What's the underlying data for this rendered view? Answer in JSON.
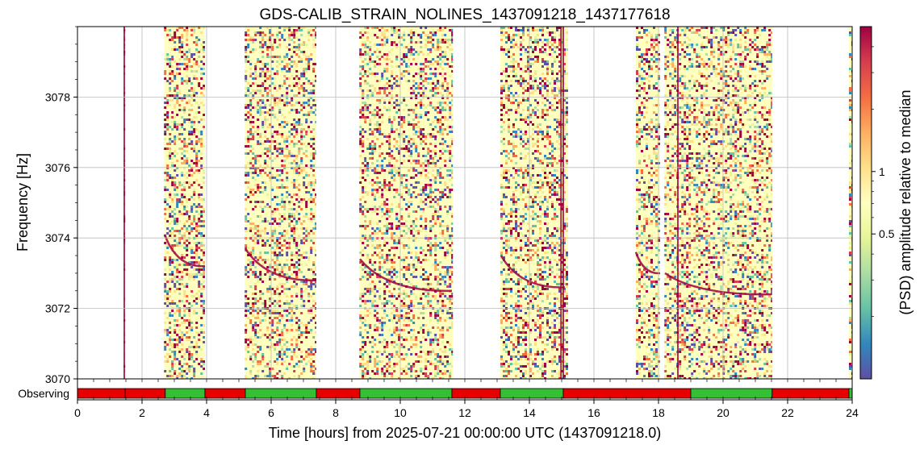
{
  "chart_data": {
    "type": "heatmap",
    "title": "GDS-CALIB_STRAIN_NOLINES_1437091218_1437177618",
    "xlabel": "Time [hours] from 2025-07-21 00:00:00 UTC (1437091218.0)",
    "ylabel": "Frequency [Hz]",
    "colorbar_label": "(PSD) amplitude relative to median",
    "xlim": [
      0,
      24
    ],
    "ylim": [
      3070,
      3080
    ],
    "x_ticks": [
      0,
      2,
      4,
      6,
      8,
      10,
      12,
      14,
      16,
      18,
      20,
      22,
      24
    ],
    "x_tick_labels": [
      "0",
      "2",
      "4",
      "6",
      "8",
      "10",
      "12",
      "14",
      "16",
      "18",
      "20",
      "22",
      "24"
    ],
    "y_ticks": [
      3070,
      3072,
      3074,
      3076,
      3078
    ],
    "y_tick_labels": [
      "3070",
      "3072",
      "3074",
      "3076",
      "3078"
    ],
    "colorbar_scale": "log",
    "colorbar_range": [
      0.1,
      5
    ],
    "colorbar_ticks": [
      0.5,
      1
    ],
    "colorbar_tick_labels": [
      "0.5",
      "1"
    ],
    "colormap": "Spectral_r",
    "grid": true,
    "data_segments_hours": [
      [
        1.43,
        1.48
      ],
      [
        2.68,
        3.95
      ],
      [
        5.18,
        7.4
      ],
      [
        8.73,
        11.63
      ],
      [
        13.1,
        15.2
      ],
      [
        17.3,
        18.05
      ],
      [
        18.18,
        21.52
      ],
      [
        23.9,
        24.0
      ]
    ],
    "line_features": [
      {
        "start": [
          2.7,
          3074.1
        ],
        "end": [
          3.95,
          3073.2
        ]
      },
      {
        "start": [
          5.2,
          3073.7
        ],
        "end": [
          7.4,
          3072.8
        ]
      },
      {
        "start": [
          8.75,
          3073.4
        ],
        "end": [
          11.6,
          3072.5
        ]
      },
      {
        "start": [
          13.12,
          3073.5
        ],
        "end": [
          15.1,
          3072.6
        ]
      },
      {
        "start": [
          17.3,
          3073.6
        ],
        "end": [
          18.05,
          3073.0
        ]
      },
      {
        "start": [
          18.2,
          3073.0
        ],
        "end": [
          21.5,
          3072.4
        ]
      }
    ],
    "vertical_features_hours": [
      1.45,
      14.98,
      15.05,
      18.6
    ],
    "state_bar": {
      "label": "Observing",
      "segments": [
        {
          "start": 0,
          "end": 1.48,
          "state": "off"
        },
        {
          "start": 1.48,
          "end": 2.72,
          "state": "off"
        },
        {
          "start": 2.72,
          "end": 3.95,
          "state": "on"
        },
        {
          "start": 3.95,
          "end": 5.2,
          "state": "off"
        },
        {
          "start": 5.2,
          "end": 7.4,
          "state": "on"
        },
        {
          "start": 7.4,
          "end": 8.75,
          "state": "off"
        },
        {
          "start": 8.75,
          "end": 11.6,
          "state": "on"
        },
        {
          "start": 11.6,
          "end": 13.1,
          "state": "off"
        },
        {
          "start": 13.1,
          "end": 15.05,
          "state": "on"
        },
        {
          "start": 15.05,
          "end": 19.0,
          "state": "off"
        },
        {
          "start": 19.0,
          "end": 21.52,
          "state": "on"
        },
        {
          "start": 21.52,
          "end": 23.9,
          "state": "off"
        },
        {
          "start": 23.9,
          "end": 24.0,
          "state": "on"
        }
      ],
      "colors": {
        "on": "#33c133",
        "off": "#e60000"
      }
    }
  }
}
